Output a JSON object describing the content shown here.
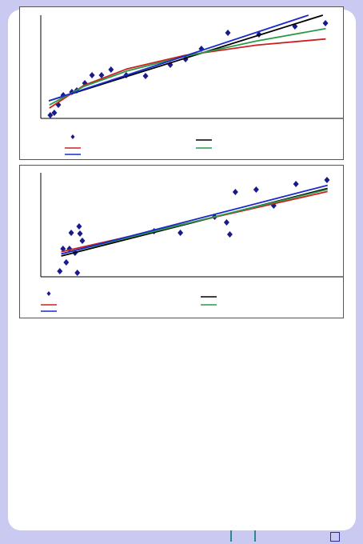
{
  "chart_data": [
    {
      "type": "scatter",
      "xlim": [
        0,
        100
      ],
      "ylim": [
        0,
        100
      ],
      "series": [
        {
          "mode": "markers",
          "color": "#1a1a8c",
          "x": [
            3.3,
            4.7,
            6.1,
            7.8,
            10.8,
            12.5,
            15.3,
            17.8,
            21.1,
            24.4,
            29.7,
            36.4,
            45,
            50.3,
            55.8,
            65,
            75.8,
            88.3,
            98.9
          ],
          "values": [
            3.1,
            5.4,
            13.2,
            22.5,
            25.6,
            27.1,
            34.1,
            41.9,
            41.9,
            47.3,
            41.9,
            41.1,
            51.9,
            57.4,
            67.4,
            82.9,
            81.4,
            89.1,
            92.2
          ]
        },
        {
          "mode": "lines",
          "color": "#000000",
          "x": [
            2.8,
            98
          ],
          "values": [
            17,
            100
          ]
        },
        {
          "mode": "lines",
          "color": "#cc2020",
          "x": [
            3,
            15,
            30,
            50,
            75,
            99
          ],
          "values": [
            10,
            32,
            48,
            61,
            71,
            77
          ]
        },
        {
          "mode": "lines",
          "color": "#2a9a4a",
          "x": [
            3,
            15,
            30,
            50,
            75,
            99
          ],
          "values": [
            13,
            31,
            46,
            60,
            75,
            87
          ]
        },
        {
          "mode": "lines",
          "color": "#1a2acc",
          "x": [
            2.8,
            93
          ],
          "values": [
            17,
            100
          ]
        }
      ]
    },
    {
      "type": "scatter",
      "xlim": [
        0,
        100
      ],
      "ylim": [
        0,
        100
      ],
      "series": [
        {
          "mode": "markers",
          "color": "#1a1a8c",
          "x": [
            6.5,
            7.6,
            8.7,
            9.8,
            10.4,
            11.7,
            12.5,
            13.1,
            13.4,
            14.2,
            38.7,
            47.7,
            59.4,
            63.5,
            64.6,
            66.5,
            73.6,
            79.6,
            87.2,
            97.8
          ],
          "values": [
            5.4,
            26.9,
            13.8,
            26.9,
            42.3,
            23.1,
            3.8,
            48.5,
            41.5,
            34.6,
            43.8,
            42.3,
            57.7,
            52.3,
            40.8,
            81.5,
            83.8,
            68.5,
            89.2,
            93.1
          ]
        },
        {
          "mode": "lines",
          "color": "#000000",
          "x": [
            7,
            98
          ],
          "values": [
            20,
            85
          ]
        },
        {
          "mode": "lines",
          "color": "#cc2020",
          "x": [
            7,
            98
          ],
          "values": [
            24,
            82
          ]
        },
        {
          "mode": "lines",
          "color": "#2a9a4a",
          "x": [
            7,
            98
          ],
          "values": [
            22,
            84
          ]
        },
        {
          "mode": "lines",
          "color": "#1a2acc",
          "x": [
            7,
            98
          ],
          "values": [
            22,
            88
          ]
        }
      ]
    }
  ]
}
